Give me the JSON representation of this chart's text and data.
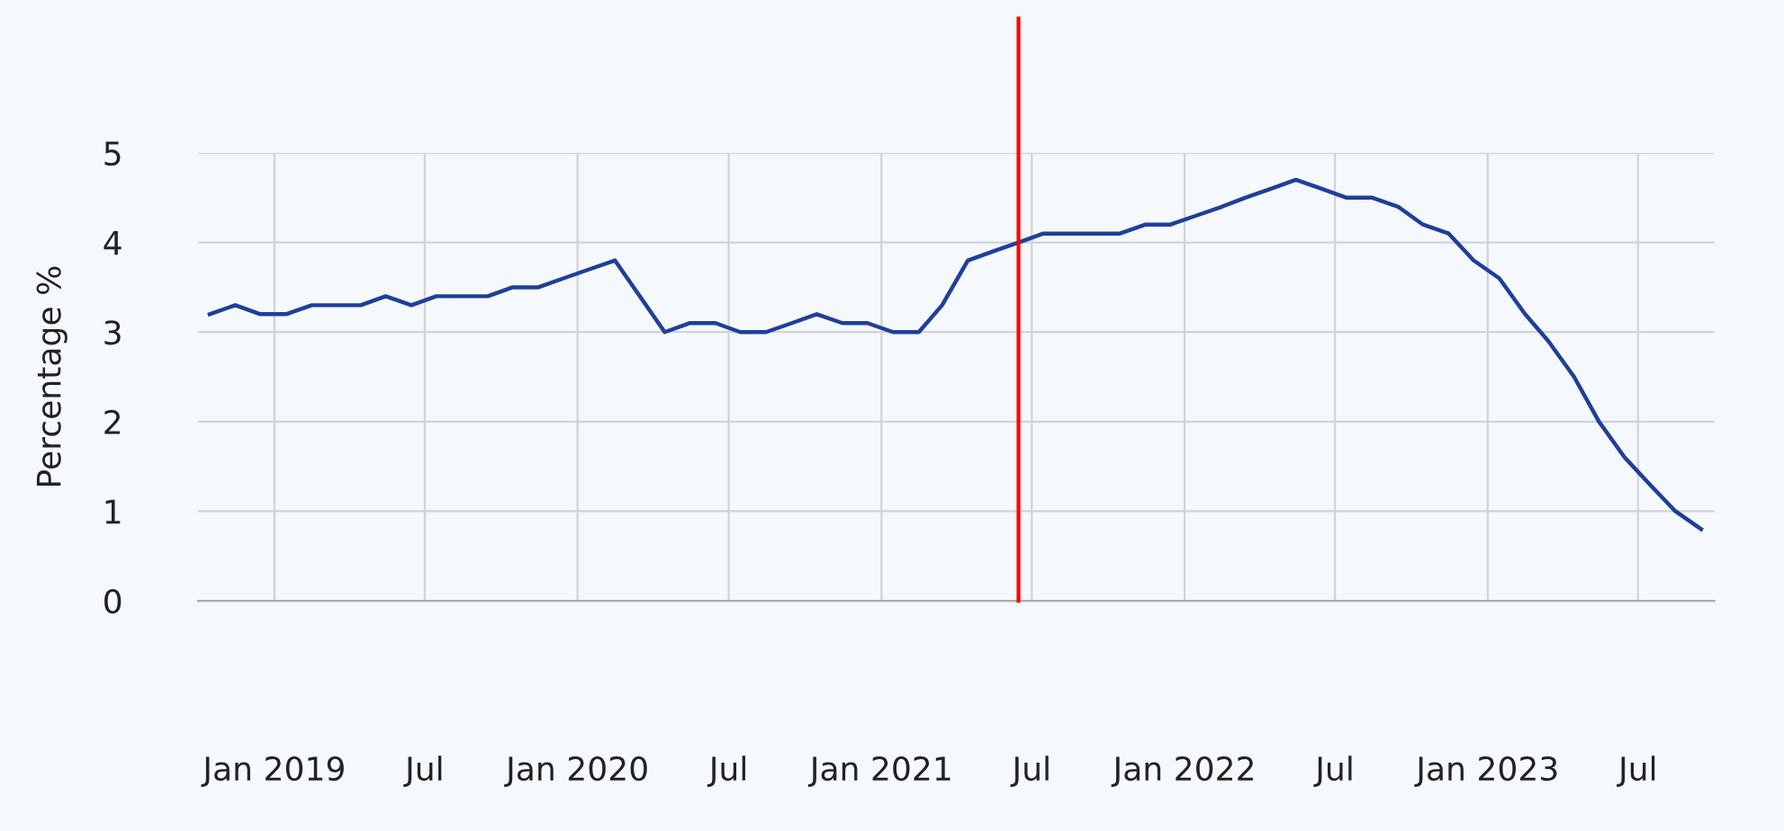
{
  "chart_data": {
    "type": "line",
    "ylabel": "Percentage %",
    "x": [
      "2018-10-15",
      "2018-11-15",
      "2018-12-15",
      "2019-01-15",
      "2019-02-15",
      "2019-03-15",
      "2019-04-15",
      "2019-05-15",
      "2019-06-15",
      "2019-07-15",
      "2019-08-15",
      "2019-09-15",
      "2019-10-15",
      "2019-11-15",
      "2019-12-15",
      "2020-01-15",
      "2020-02-15",
      "2020-04-15",
      "2020-05-15",
      "2020-06-15",
      "2020-07-15",
      "2020-08-15",
      "2020-09-15",
      "2020-10-15",
      "2020-11-15",
      "2020-12-15",
      "2021-01-15",
      "2021-02-15",
      "2021-03-15",
      "2021-04-15",
      "2021-05-15",
      "2021-06-15",
      "2021-07-15",
      "2021-08-15",
      "2021-09-15",
      "2021-10-15",
      "2021-11-15",
      "2021-12-15",
      "2022-01-15",
      "2022-02-15",
      "2022-03-15",
      "2022-04-15",
      "2022-05-15",
      "2022-06-15",
      "2022-07-15",
      "2022-08-15",
      "2022-09-15",
      "2022-10-15",
      "2022-11-15",
      "2022-12-15",
      "2023-01-15",
      "2023-02-15",
      "2023-03-15",
      "2023-04-15",
      "2023-05-15",
      "2023-06-15",
      "2023-07-15",
      "2023-08-15",
      "2023-09-15"
    ],
    "series": [
      {
        "color": "#1f3f99",
        "values": [
          3.2,
          3.3,
          3.2,
          3.2,
          3.3,
          3.3,
          3.3,
          3.4,
          3.3,
          3.4,
          3.4,
          3.4,
          3.5,
          3.5,
          3.6,
          3.7,
          3.8,
          3.0,
          3.1,
          3.1,
          3.0,
          3.0,
          3.1,
          3.2,
          3.1,
          3.1,
          3.0,
          3.0,
          3.3,
          3.8,
          3.9,
          4.0,
          4.1,
          4.1,
          4.1,
          4.1,
          4.2,
          4.2,
          4.3,
          4.4,
          4.5,
          4.6,
          4.7,
          4.6,
          4.5,
          4.5,
          4.4,
          4.2,
          4.1,
          3.8,
          3.6,
          3.2,
          2.9,
          2.5,
          2.0,
          1.6,
          1.3,
          1.0,
          0.8
        ]
      }
    ],
    "xlim": [
      "2018-10-01",
      "2023-10-01"
    ],
    "xticks": [
      {
        "value": "2019-01-01",
        "label": "Jan 2019"
      },
      {
        "value": "2019-07-01",
        "label": "Jul"
      },
      {
        "value": "2020-01-01",
        "label": "Jan 2020"
      },
      {
        "value": "2020-07-01",
        "label": "Jul"
      },
      {
        "value": "2021-01-01",
        "label": "Jan 2021"
      },
      {
        "value": "2021-07-01",
        "label": "Jul"
      },
      {
        "value": "2022-01-01",
        "label": "Jan 2022"
      },
      {
        "value": "2022-07-01",
        "label": "Jul"
      },
      {
        "value": "2023-01-01",
        "label": "Jan 2023"
      },
      {
        "value": "2023-07-01",
        "label": "Jul"
      }
    ],
    "ylim": [
      0,
      5
    ],
    "yticks": [
      0,
      1,
      2,
      3,
      4,
      5
    ],
    "ref_lines": [
      {
        "axis": "x",
        "value": "2021-06-15",
        "color": "#ff0000"
      }
    ],
    "grid": true,
    "legend": false,
    "marker": "none",
    "line_style": "solid"
  }
}
